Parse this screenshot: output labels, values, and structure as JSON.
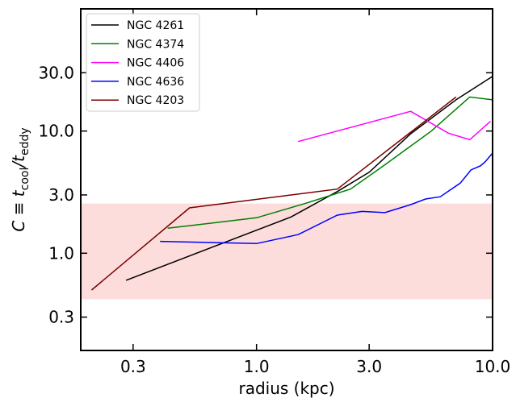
{
  "chart_data": {
    "type": "line",
    "xlabel": "radius  (kpc)",
    "ylabel_parts": {
      "prefix": "C ≡ t",
      "sub1": "cool",
      "slash": "/t",
      "sub2": "eddy"
    },
    "xscale": "log",
    "yscale": "log",
    "xlim": [
      0.18,
      10.0
    ],
    "ylim": [
      0.16,
      100.0
    ],
    "xticks": [
      0.3,
      1.0,
      3.0,
      10.0
    ],
    "xtick_labels": [
      "0.3",
      "1.0",
      "3.0",
      "10.0"
    ],
    "yticks": [
      0.3,
      1.0,
      3.0,
      10.0,
      30.0
    ],
    "ytick_labels": [
      "0.3",
      "1.0",
      "3.0",
      "10.0",
      "30.0"
    ],
    "shaded_band": {
      "y_range": [
        0.42,
        2.55
      ],
      "color": "#fddcdc"
    },
    "legend_position": "top-left",
    "series": [
      {
        "name": "NGC 4261",
        "color": "#000000",
        "x": [
          0.28,
          1.4,
          2.2,
          3.0,
          4.5,
          7.0,
          10.0
        ],
        "y": [
          0.6,
          1.98,
          3.2,
          4.6,
          9.5,
          18.0,
          28.0
        ]
      },
      {
        "name": "NGC 4374",
        "color": "#008000",
        "x": [
          0.42,
          1.0,
          1.6,
          2.5,
          3.5,
          5.5,
          8.0,
          10.0
        ],
        "y": [
          1.6,
          1.95,
          2.55,
          3.35,
          5.3,
          10.0,
          19.0,
          18.0
        ]
      },
      {
        "name": "NGC 4406",
        "color": "#ff00ff",
        "x": [
          1.5,
          4.5,
          6.5,
          8.0,
          9.8
        ],
        "y": [
          8.2,
          14.5,
          9.6,
          8.5,
          12.0
        ]
      },
      {
        "name": "NGC 4636",
        "color": "#0000ff",
        "x": [
          0.39,
          1.0,
          1.5,
          2.2,
          2.8,
          3.5,
          4.5,
          5.2,
          6.0,
          7.3,
          8.1,
          8.9,
          9.3,
          10.0
        ],
        "y": [
          1.25,
          1.2,
          1.42,
          2.05,
          2.2,
          2.15,
          2.5,
          2.78,
          2.9,
          3.75,
          4.8,
          5.2,
          5.6,
          6.6
        ]
      },
      {
        "name": "NGC 4203",
        "color": "#7a0000",
        "x": [
          0.2,
          0.52,
          2.2,
          7.0
        ],
        "y": [
          0.5,
          2.35,
          3.35,
          19.0
        ]
      }
    ]
  }
}
